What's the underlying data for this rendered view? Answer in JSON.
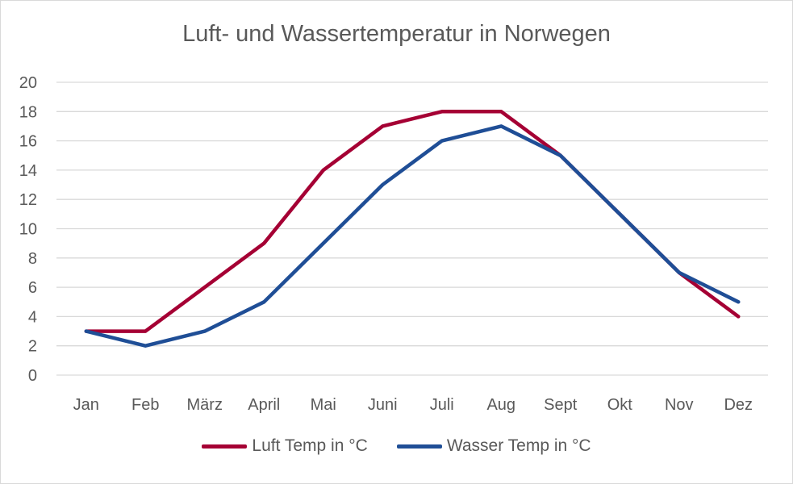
{
  "chart_data": {
    "type": "line",
    "title": "Luft- und Wassertemperatur in Norwegen",
    "categories": [
      "Jan",
      "Feb",
      "März",
      "April",
      "Mai",
      "Juni",
      "Juli",
      "Aug",
      "Sept",
      "Okt",
      "Nov",
      "Dez"
    ],
    "ylim": [
      0,
      20
    ],
    "yticks": [
      0,
      2,
      4,
      6,
      8,
      10,
      12,
      14,
      16,
      18,
      20
    ],
    "grid": true,
    "legend_position": "bottom",
    "series": [
      {
        "name": "Luft Temp in °C",
        "color": "#a50034",
        "values": [
          3,
          3,
          6,
          9,
          14,
          17,
          18,
          18,
          15,
          11,
          7,
          4
        ]
      },
      {
        "name": "Wasser Temp in °C",
        "color": "#1f4e96",
        "values": [
          3,
          2,
          3,
          5,
          9,
          13,
          16,
          17,
          15,
          11,
          7,
          5
        ]
      }
    ]
  }
}
